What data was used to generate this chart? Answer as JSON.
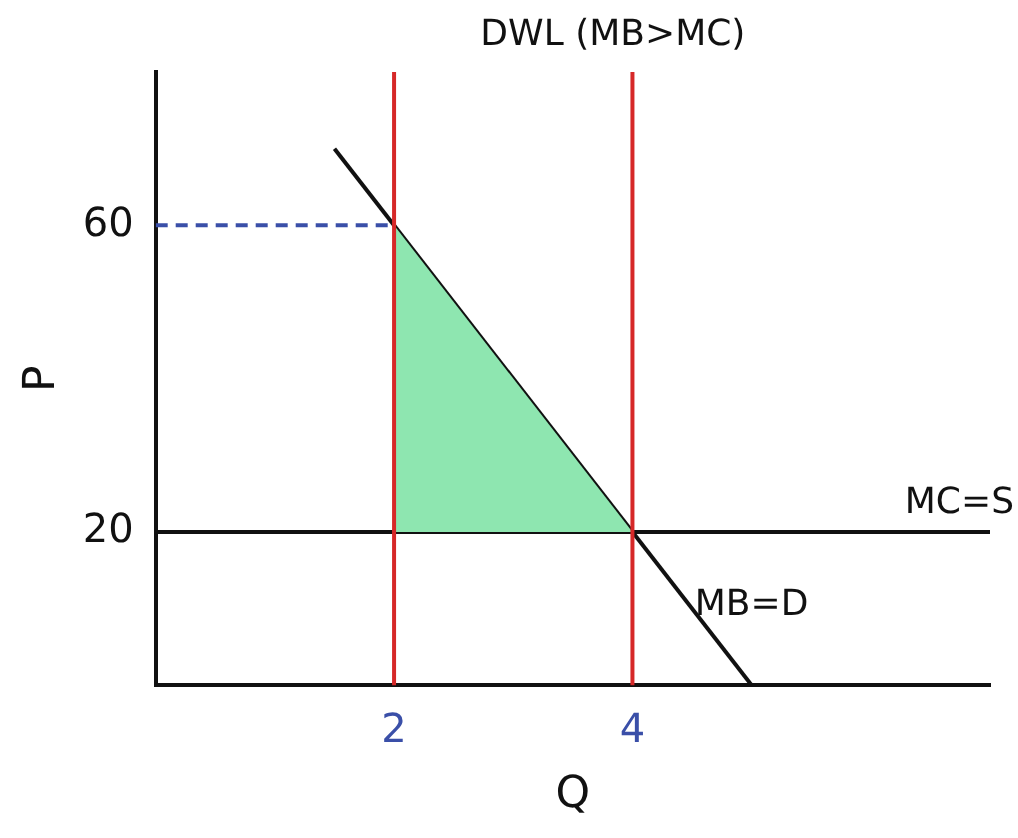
{
  "chart_data": {
    "type": "line",
    "xlabel": "Q",
    "ylabel": "P",
    "xlim": [
      0,
      7
    ],
    "ylim": [
      0,
      80
    ],
    "xticks": [
      2,
      4
    ],
    "yticks": [
      20,
      60
    ],
    "grid": false,
    "legend": false,
    "marker": "none",
    "series": [
      {
        "type": "area",
        "x": [
          2,
          4,
          2
        ],
        "values": [
          60,
          20,
          20
        ],
        "color": "#8ee6b0"
      },
      {
        "name": "MC=S",
        "x": [
          0,
          7
        ],
        "values": [
          20,
          20
        ],
        "color": "#111111"
      },
      {
        "name": "MB=D",
        "x": [
          1.5,
          5
        ],
        "values": [
          70,
          0
        ],
        "color": "#111111"
      },
      {
        "x": [
          0,
          2
        ],
        "values": [
          60,
          60
        ],
        "color": "#3a4fa8",
        "line_style": "dashed"
      }
    ],
    "ref_lines": [
      {
        "axis": "x",
        "value": 2,
        "color": "#d62828"
      },
      {
        "axis": "x",
        "value": 4,
        "color": "#d62828"
      }
    ],
    "annotations": [
      "DWL (MB>MC)"
    ]
  }
}
